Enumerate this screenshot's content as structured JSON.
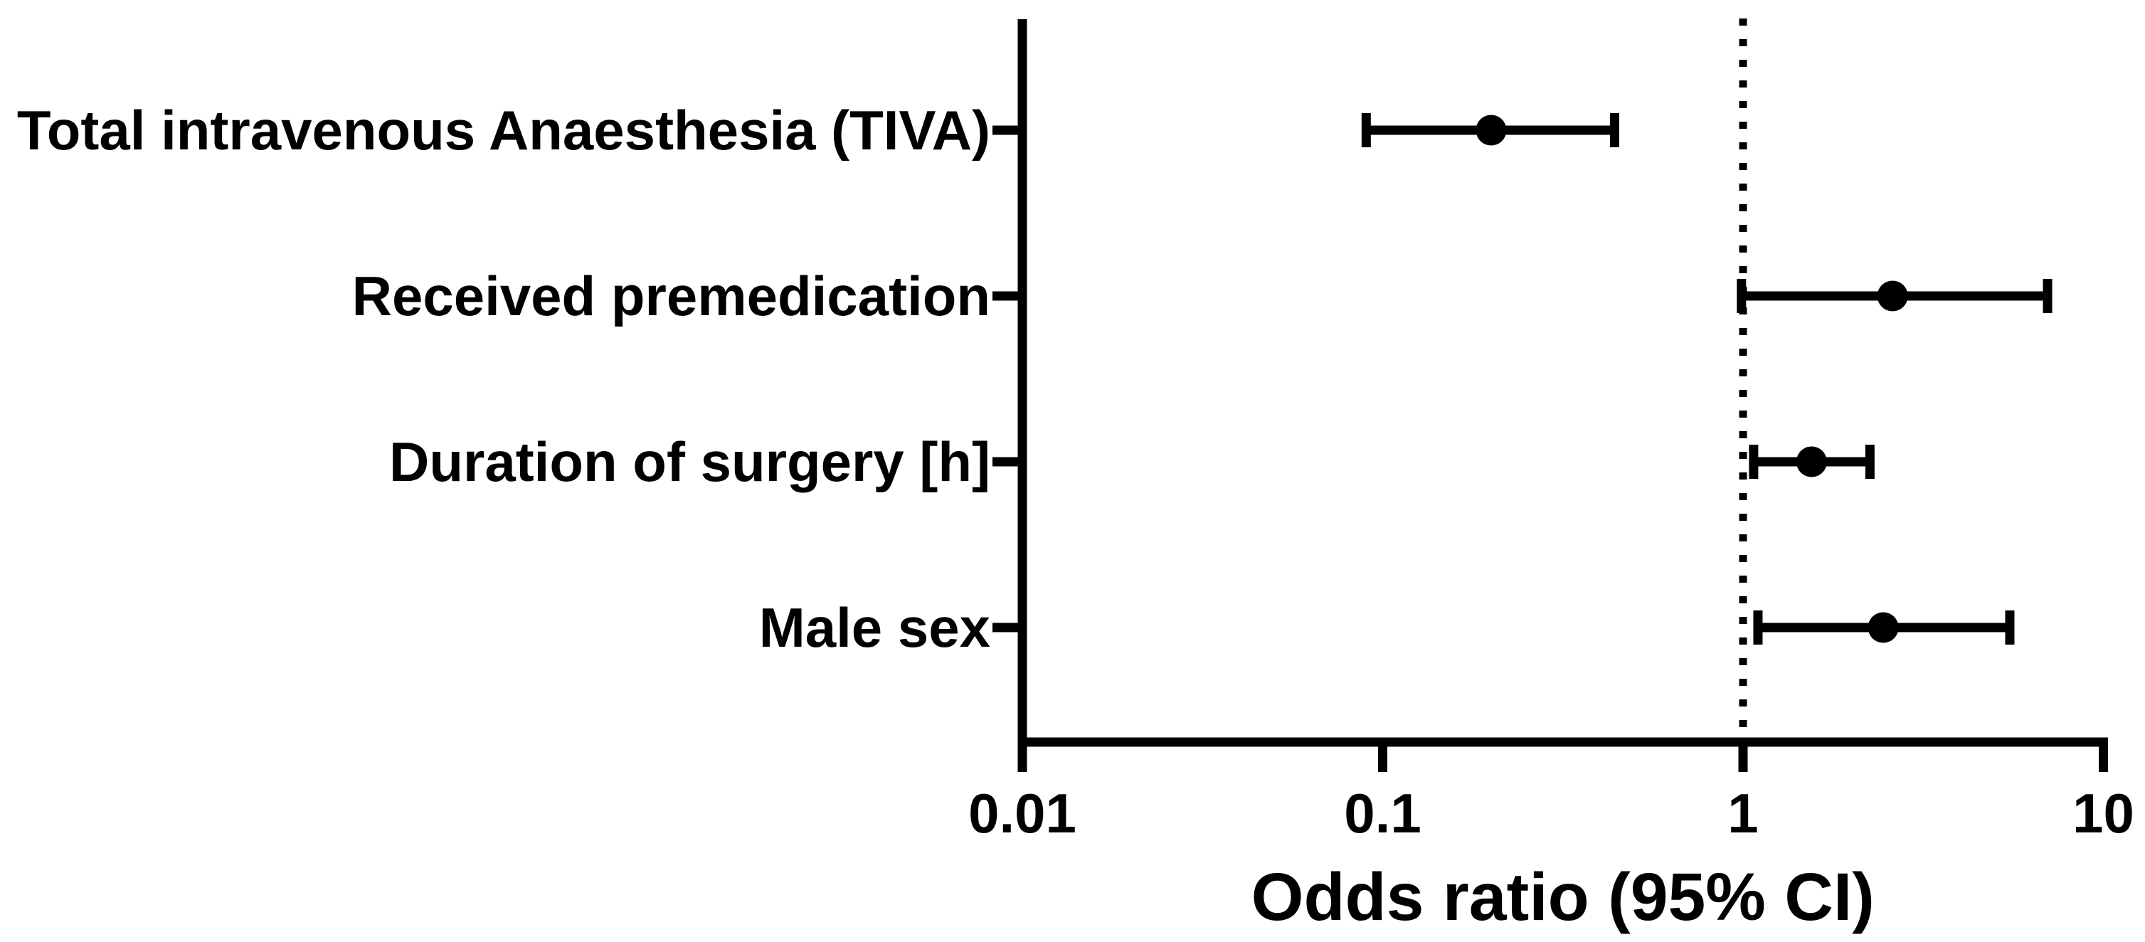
{
  "figure": {
    "background": "#ffffff",
    "ink": "#000000"
  },
  "chart_data": {
    "type": "scatter",
    "subtype": "forest-plot",
    "title": "",
    "xlabel": "Odds ratio (95% CI)",
    "ylabel": "",
    "x_scale": "log10",
    "xlim": [
      0.01,
      10
    ],
    "x_ticks": [
      0.01,
      0.1,
      1,
      10
    ],
    "x_tick_labels": [
      "0.01",
      "0.1",
      "1",
      "10"
    ],
    "reference_line": {
      "x": 1,
      "style": "dotted"
    },
    "grid": false,
    "legend": false,
    "categories": [
      "Total intravenous Anaesthesia (TIVA)",
      "Received premedication",
      "Duration of surgery [h]",
      "Male sex"
    ],
    "points": [
      {
        "label": "Total intravenous Anaesthesia (TIVA)",
        "odds_ratio": 0.2,
        "ci_low": 0.09,
        "ci_high": 0.44
      },
      {
        "label": "Received premedication",
        "odds_ratio": 2.6,
        "ci_low": 0.99,
        "ci_high": 7.0
      },
      {
        "label": "Duration of surgery [h]",
        "odds_ratio": 1.55,
        "ci_low": 1.07,
        "ci_high": 2.25
      },
      {
        "label": "Male sex",
        "odds_ratio": 2.45,
        "ci_low": 1.1,
        "ci_high": 5.5
      }
    ]
  }
}
